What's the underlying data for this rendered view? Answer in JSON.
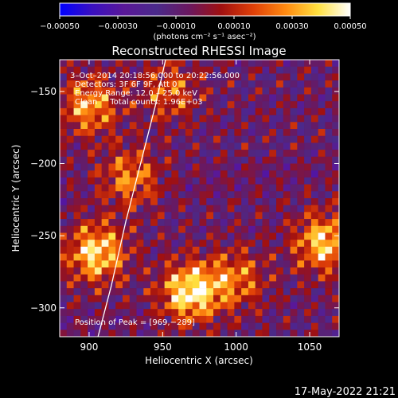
{
  "chart_data": {
    "type": "heatmap",
    "title": "Reconstructed RHESSI Image",
    "xlabel": "Heliocentric X (arcsec)",
    "ylabel": "Heliocentric Y (arcsec)",
    "xlim": [
      880,
      1070
    ],
    "ylim": [
      -320,
      -128
    ],
    "x_ticks": [
      900,
      950,
      1000,
      1050
    ],
    "x_tick_labels": [
      "900",
      "950",
      "1000",
      "1050"
    ],
    "y_ticks": [
      -150,
      -200,
      -250,
      -300
    ],
    "y_tick_labels": [
      "−150",
      "−200",
      "−250",
      "−300"
    ],
    "colorbar": {
      "min": -0.0005,
      "max": 0.0005,
      "ticks": [
        -0.0005,
        -0.0003,
        -0.0001,
        0.0001,
        0.0003,
        0.0005
      ],
      "tick_labels": [
        "−0.00050",
        "−0.00030",
        "−0.00010",
        "0.00010",
        "0.00030",
        "0.00050"
      ],
      "unit_label": "(photons cm⁻² s⁻¹ asec⁻²)",
      "colormap": [
        "#0000ff",
        "#3a10c0",
        "#5a1898",
        "#4a2a8a",
        "#6a1860",
        "#a01010",
        "#e04008",
        "#ff8a10",
        "#ffe040",
        "#ffffff"
      ]
    },
    "annotations": [
      "3–Oct–2014 20:18:56.000 to 20:22:56.000",
      "Detectors: 3F 6F 9F, Att 0",
      "Energy Range: 12.0 – 25.0 keV",
      "Clean     Total counts: 1.96E+03"
    ],
    "peak_label": "Position of Peak = [969,−289]",
    "limb_curve": [
      [
        905,
        -324
      ],
      [
        915,
        -285
      ],
      [
        925,
        -240
      ],
      [
        935,
        -200
      ],
      [
        945,
        -160
      ],
      [
        952,
        -128
      ]
    ],
    "bright_spots": [
      [
        969,
        -289,
        1.0
      ],
      [
        905,
        -262,
        0.9
      ],
      [
        1060,
        -255,
        0.85
      ],
      [
        900,
        -160,
        0.7
      ],
      [
        928,
        -210,
        0.6
      ],
      [
        1000,
        -280,
        0.55
      ],
      [
        955,
        -150,
        0.5
      ]
    ],
    "grid": false,
    "legend": "none"
  },
  "footer": {
    "timestamp": "17-May-2022 21:21"
  }
}
